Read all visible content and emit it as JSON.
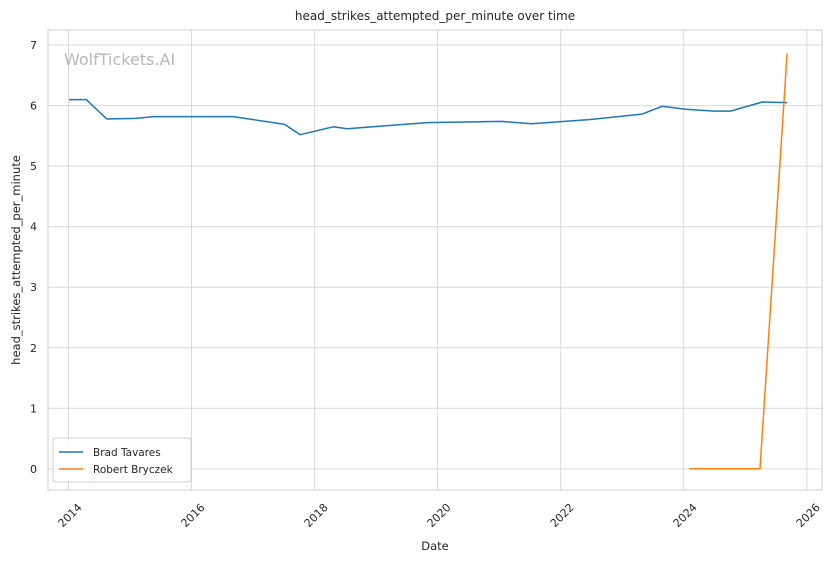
{
  "chart_data": {
    "type": "line",
    "title": "head_strikes_attempted_per_minute over time",
    "xlabel": "Date",
    "ylabel": "head_strikes_attempted_per_minute",
    "watermark": "WolfTickets.AI",
    "xlim": [
      "2013-09-01",
      "2026-04-01"
    ],
    "ylim": [
      -0.35,
      7.25
    ],
    "x_ticks": [
      "2014",
      "2016",
      "2018",
      "2020",
      "2022",
      "2024",
      "2026"
    ],
    "y_ticks": [
      "0",
      "1",
      "2",
      "3",
      "4",
      "5",
      "6",
      "7"
    ],
    "grid": true,
    "legend_position": "lower-left",
    "series": [
      {
        "name": "Brad Tavares",
        "color": "#1f77b4",
        "x": [
          "2014-01-04",
          "2014-04-16",
          "2014-08-16",
          "2015-01-31",
          "2015-05-23",
          "2016-09-03",
          "2017-07-07",
          "2017-10-07",
          "2018-04-21",
          "2018-07-14",
          "2019-11-02",
          "2021-01-16",
          "2021-07-10",
          "2022-06-18",
          "2023-04-29",
          "2023-08-26",
          "2024-01-13",
          "2024-06-29",
          "2024-10-05",
          "2025-04-12",
          "2025-09-06"
        ],
        "values": [
          6.1,
          6.1,
          5.78,
          5.79,
          5.82,
          5.82,
          5.69,
          5.52,
          5.65,
          5.62,
          5.72,
          5.74,
          5.7,
          5.77,
          5.86,
          5.99,
          5.94,
          5.91,
          5.91,
          6.06,
          6.05
        ]
      },
      {
        "name": "Robert Bryczek",
        "color": "#ff7f0e",
        "x": [
          "2024-02-03",
          "2025-03-29",
          "2025-09-06"
        ],
        "values": [
          0.0,
          0.0,
          6.86
        ]
      }
    ]
  }
}
